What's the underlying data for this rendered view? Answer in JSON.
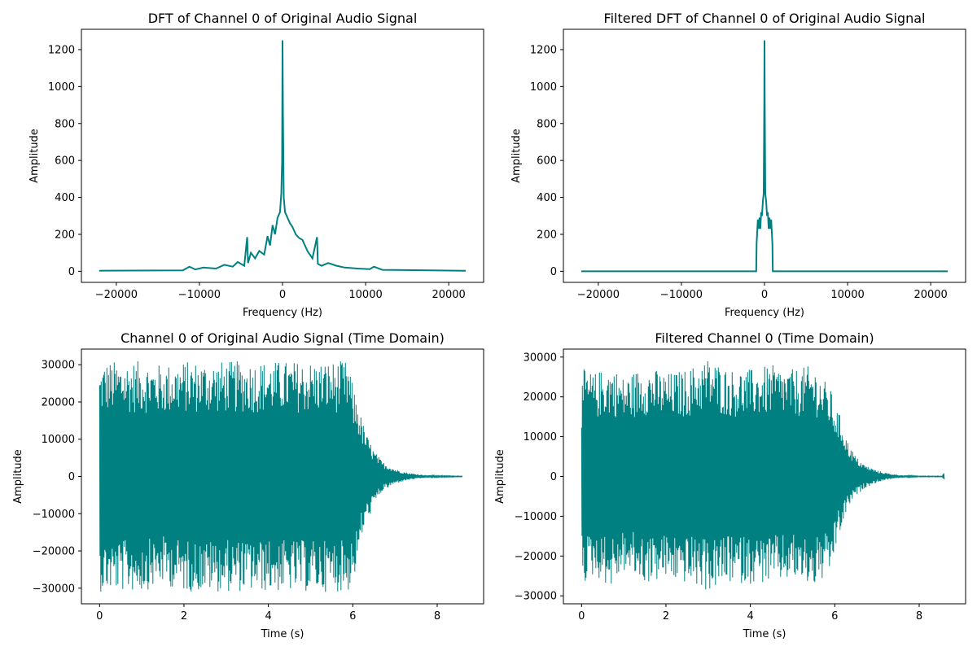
{
  "colors": {
    "series": "#008080",
    "background": "#ffffff",
    "axes": "#000000"
  },
  "chart_data": [
    {
      "type": "line",
      "title": "DFT of Channel 0 of Original Audio Signal",
      "xlabel": "Frequency (Hz)",
      "ylabel": "Amplitude",
      "xlim": [
        -24200,
        24200
      ],
      "ylim": [
        -60,
        1310
      ],
      "xticks": [
        -20000,
        -10000,
        0,
        10000,
        20000
      ],
      "xtick_labels": [
        "−20000",
        "−10000",
        "0",
        "10000",
        "20000"
      ],
      "yticks": [
        0,
        200,
        400,
        600,
        800,
        1000,
        1200
      ],
      "ytick_labels": [
        "0",
        "200",
        "400",
        "600",
        "800",
        "1000",
        "1200"
      ],
      "grid": false,
      "series": [
        {
          "x": [
            -22050,
            -12000,
            -11200,
            -10500,
            -9500,
            -8000,
            -7000,
            -6000,
            -5400,
            -5000,
            -4600,
            -4250,
            -4150,
            -3800,
            -3300,
            -2800,
            -2200,
            -1800,
            -1500,
            -1200,
            -900,
            -600,
            -300,
            -150,
            -50,
            0,
            50,
            150,
            300,
            600,
            900,
            1200,
            1600,
            2000,
            2400,
            3000,
            3600,
            4150,
            4250,
            4700,
            5500,
            6500,
            7500,
            9000,
            10500,
            11000,
            12000,
            22050
          ],
          "y": [
            3,
            5,
            25,
            10,
            20,
            15,
            35,
            25,
            50,
            40,
            30,
            185,
            45,
            100,
            70,
            110,
            90,
            190,
            140,
            250,
            200,
            290,
            320,
            420,
            600,
            1250,
            880,
            400,
            320,
            290,
            260,
            240,
            200,
            180,
            170,
            110,
            70,
            185,
            40,
            30,
            45,
            30,
            20,
            15,
            12,
            25,
            8,
            3
          ]
        }
      ]
    },
    {
      "type": "line",
      "title": "Filtered DFT of Channel 0 of Original Audio Signal",
      "xlabel": "Frequency (Hz)",
      "ylabel": "Amplitude",
      "xlim": [
        -24200,
        24200
      ],
      "ylim": [
        -60,
        1310
      ],
      "xticks": [
        -20000,
        -10000,
        0,
        10000,
        20000
      ],
      "xtick_labels": [
        "−20000",
        "−10000",
        "0",
        "10000",
        "20000"
      ],
      "yticks": [
        0,
        200,
        400,
        600,
        800,
        1000,
        1200
      ],
      "ytick_labels": [
        "0",
        "200",
        "400",
        "600",
        "800",
        "1000",
        "1200"
      ],
      "grid": false,
      "series": [
        {
          "x": [
            -22050,
            -1000,
            -950,
            -800,
            -700,
            -600,
            -500,
            -400,
            -300,
            -200,
            -100,
            -30,
            0,
            30,
            100,
            200,
            300,
            400,
            500,
            600,
            700,
            800,
            950,
            1000,
            22050
          ],
          "y": [
            0,
            0,
            150,
            280,
            230,
            290,
            230,
            320,
            300,
            380,
            420,
            900,
            1250,
            900,
            420,
            380,
            300,
            320,
            230,
            290,
            230,
            280,
            150,
            0,
            0
          ]
        }
      ]
    },
    {
      "type": "area",
      "title": "Channel 0 of Original Audio Signal (Time Domain)",
      "xlabel": "Time (s)",
      "ylabel": "Amplitude",
      "xlim": [
        -0.43,
        9.1
      ],
      "ylim": [
        -34200,
        34200
      ],
      "xticks": [
        0,
        2,
        4,
        6,
        8
      ],
      "xtick_labels": [
        "0",
        "2",
        "4",
        "6",
        "8"
      ],
      "yticks": [
        -30000,
        -20000,
        -10000,
        0,
        10000,
        20000,
        30000
      ],
      "ytick_labels": [
        "−30000",
        "−20000",
        "−10000",
        "0",
        "10000",
        "20000",
        "30000"
      ],
      "grid": false,
      "series": [
        {
          "x": [
            0,
            0.1,
            0.5,
            1.0,
            1.5,
            2.0,
            2.5,
            3.0,
            3.5,
            4.0,
            4.5,
            5.0,
            5.5,
            5.9,
            6.0,
            6.1,
            6.2,
            6.3,
            6.5,
            6.7,
            7.0,
            7.3,
            7.6,
            8.0,
            8.6
          ],
          "upper": [
            29000,
            31000,
            31000,
            31000,
            30000,
            31000,
            31000,
            31000,
            31000,
            31000,
            31000,
            31000,
            31000,
            31000,
            24000,
            21000,
            16000,
            12000,
            7000,
            4000,
            2000,
            1000,
            500,
            200,
            100
          ],
          "lower": [
            -31000,
            -31000,
            -31000,
            -31000,
            -29000,
            -31000,
            -31000,
            -31000,
            -31000,
            -31000,
            -31000,
            -31000,
            -31000,
            -31000,
            -28000,
            -25000,
            -17000,
            -13000,
            -8000,
            -4000,
            -2000,
            -1000,
            -500,
            -200,
            -100
          ]
        }
      ]
    },
    {
      "type": "area",
      "title": "Filtered Channel 0 (Time Domain)",
      "xlabel": "Time (s)",
      "ylabel": "Amplitude",
      "xlim": [
        -0.43,
        9.1
      ],
      "ylim": [
        -32000,
        32000
      ],
      "xticks": [
        0,
        2,
        4,
        6,
        8
      ],
      "xtick_labels": [
        "0",
        "2",
        "4",
        "6",
        "8"
      ],
      "yticks": [
        -30000,
        -20000,
        -10000,
        0,
        10000,
        20000,
        30000
      ],
      "ytick_labels": [
        "−30000",
        "−20000",
        "−10000",
        "0",
        "10000",
        "20000",
        "30000"
      ],
      "grid": false,
      "series": [
        {
          "x": [
            0,
            0.05,
            0.3,
            0.7,
            1.0,
            1.5,
            2.0,
            2.5,
            3.0,
            3.5,
            4.0,
            4.5,
            5.0,
            5.5,
            5.9,
            6.0,
            6.1,
            6.2,
            6.3,
            6.5,
            6.7,
            7.0,
            7.3,
            7.6,
            8.0,
            8.55,
            8.6
          ],
          "upper": [
            22000,
            27000,
            26000,
            28000,
            25000,
            28000,
            26000,
            27000,
            30000,
            27000,
            27000,
            28000,
            27000,
            28000,
            22000,
            18000,
            16000,
            13000,
            9000,
            5000,
            3000,
            1500,
            700,
            300,
            100,
            100,
            2000
          ],
          "lower": [
            -26000,
            -27000,
            -25000,
            -28000,
            -24000,
            -27000,
            -26000,
            -27000,
            -29000,
            -27000,
            -27000,
            -27000,
            -26000,
            -28000,
            -25000,
            -19000,
            -15000,
            -12000,
            -8000,
            -5000,
            -3000,
            -1500,
            -700,
            -300,
            -100,
            -100,
            -1200
          ]
        }
      ]
    }
  ]
}
